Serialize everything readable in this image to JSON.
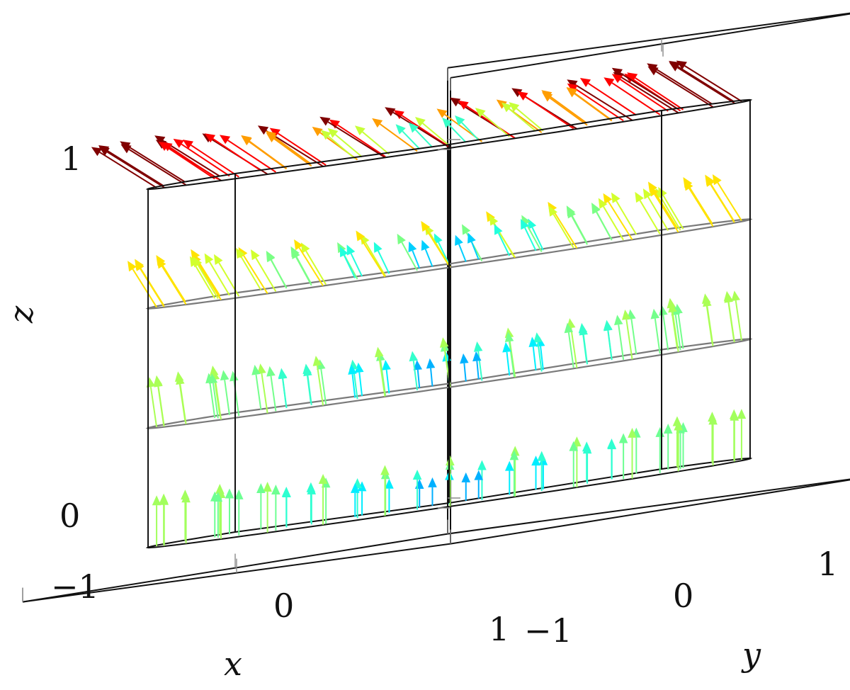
{
  "chart_data": {
    "type": "quiver3d",
    "title": "",
    "xlabel": "x",
    "ylabel": "y",
    "zlabel": "z",
    "xlim": [
      -1,
      1
    ],
    "ylim": [
      -1,
      1
    ],
    "zlim": [
      0,
      1
    ],
    "x_ticks": [
      "−1",
      "0",
      "1"
    ],
    "y_ticks": [
      "−1",
      "0",
      "1"
    ],
    "z_ticks": [
      "0",
      "1"
    ],
    "slice_levels_z": [
      0,
      0.333,
      0.667,
      1
    ],
    "domain": "three-quarter cylinder of radius 1 (quadrant x<0, y<0 removed)",
    "colormap": "jet",
    "grid": false,
    "legend": "none"
  }
}
